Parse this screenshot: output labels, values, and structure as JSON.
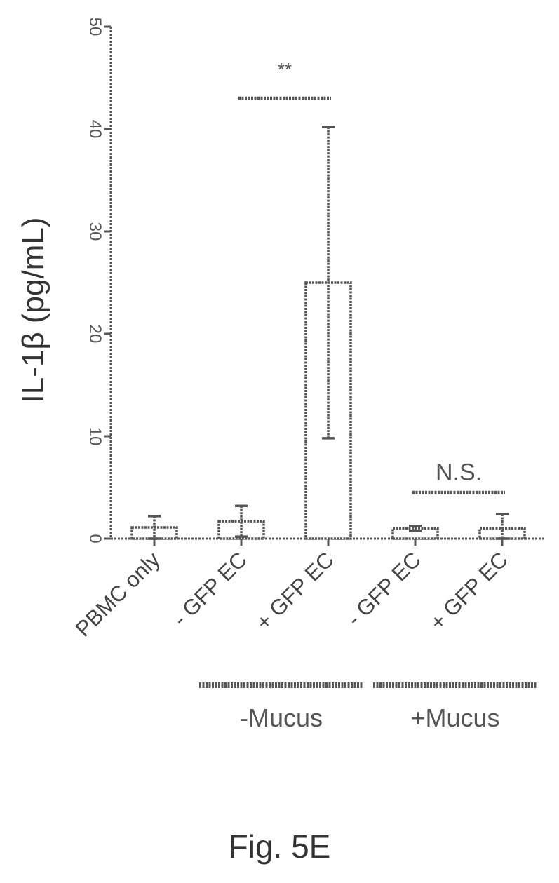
{
  "chart_data": {
    "type": "bar",
    "ylabel": "IL-1β (pg/mL)",
    "ylim": [
      0,
      50
    ],
    "yticks": [
      "0",
      "10",
      "20",
      "30",
      "40",
      "50"
    ],
    "categories": [
      "PBMC only",
      "- GFP EC",
      "+ GFP EC",
      "- GFP EC",
      "+ GFP EC"
    ],
    "values": [
      1.1,
      1.7,
      25.0,
      1.0,
      1.0
    ],
    "error": [
      1.1,
      1.5,
      15.2,
      0.25,
      1.4
    ],
    "groups": [
      {
        "label": "-Mucus",
        "categories": [
          1,
          2
        ]
      },
      {
        "label": "+Mucus",
        "categories": [
          3,
          4
        ]
      }
    ],
    "significance": [
      {
        "label": "**",
        "from": 1,
        "to": 2,
        "y": 43
      },
      {
        "label": "N.S.",
        "from": 3,
        "to": 4,
        "y": 4.5
      }
    ],
    "grid": false,
    "legend": "none",
    "bar_color": "#ffffff",
    "stroke_color": "#555555"
  },
  "caption": "Fig. 5E"
}
